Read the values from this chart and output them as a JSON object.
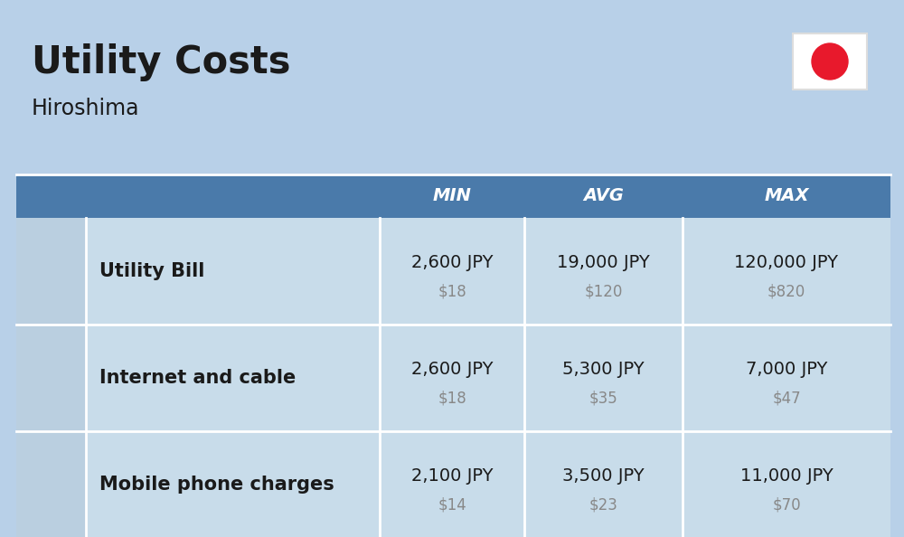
{
  "title": "Utility Costs",
  "subtitle": "Hiroshima",
  "background_color": "#b8d0e8",
  "header_bg_color": "#4a7aaa",
  "header_text_color": "#ffffff",
  "row_bg_color": "#c8dcea",
  "icon_col_bg": "#bacfe0",
  "table_border_color": "#ffffff",
  "col_headers": [
    "MIN",
    "AVG",
    "MAX"
  ],
  "rows": [
    {
      "label": "Utility Bill",
      "min_jpy": "2,600 JPY",
      "min_usd": "$18",
      "avg_jpy": "19,000 JPY",
      "avg_usd": "$120",
      "max_jpy": "120,000 JPY",
      "max_usd": "$820"
    },
    {
      "label": "Internet and cable",
      "min_jpy": "2,600 JPY",
      "min_usd": "$18",
      "avg_jpy": "5,300 JPY",
      "avg_usd": "$35",
      "max_jpy": "7,000 JPY",
      "max_usd": "$47"
    },
    {
      "label": "Mobile phone charges",
      "min_jpy": "2,100 JPY",
      "min_usd": "$14",
      "avg_jpy": "3,500 JPY",
      "avg_usd": "$23",
      "max_jpy": "11,000 JPY",
      "max_usd": "$70"
    }
  ],
  "title_fontsize": 30,
  "subtitle_fontsize": 17,
  "header_fontsize": 14,
  "cell_jpy_fontsize": 14,
  "cell_usd_fontsize": 12,
  "label_fontsize": 15,
  "flag_circle_color": "#e8192c",
  "flag_bg_color": "#ffffff",
  "text_color": "#1a1a1a",
  "usd_color": "#888888"
}
